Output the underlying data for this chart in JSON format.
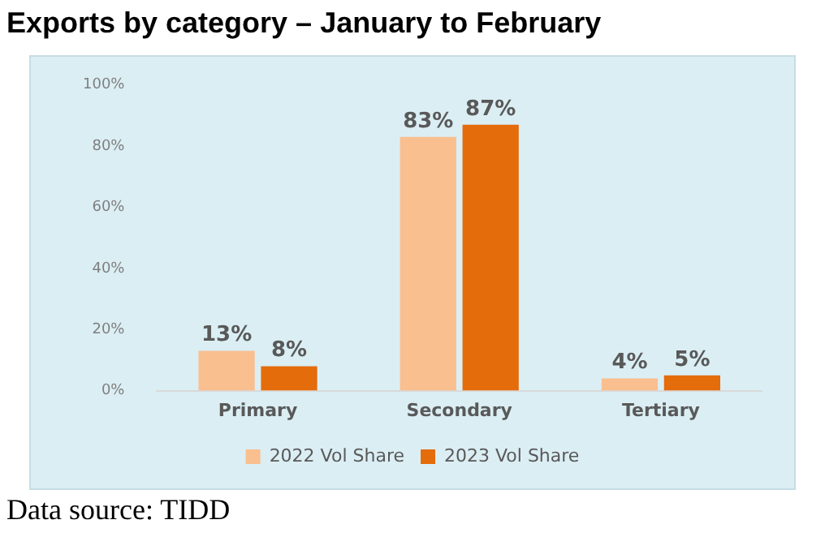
{
  "chart_data": {
    "type": "bar",
    "title": "Exports by category – January to February",
    "categories": [
      "Primary",
      "Secondary",
      "Tertiary"
    ],
    "series": [
      {
        "name": "2022 Vol Share",
        "color": "#f9bf8f",
        "values": [
          13,
          83,
          4
        ],
        "value_labels": [
          "13%",
          "83%",
          "4%"
        ]
      },
      {
        "name": "2023 Vol Share",
        "color": "#e46c0a",
        "values": [
          8,
          87,
          5
        ],
        "value_labels": [
          "8%",
          "87%",
          "5%"
        ]
      }
    ],
    "ylim": [
      0,
      100
    ],
    "yticks": [
      {
        "value": 0,
        "label": "0%"
      },
      {
        "value": 20,
        "label": "20%"
      },
      {
        "value": 40,
        "label": "40%"
      },
      {
        "value": 60,
        "label": "60%"
      },
      {
        "value": 80,
        "label": "80%"
      },
      {
        "value": 100,
        "label": "100%"
      }
    ],
    "grid": false,
    "legend": "bottom",
    "annotations": [
      "Data source: TIDD"
    ]
  }
}
